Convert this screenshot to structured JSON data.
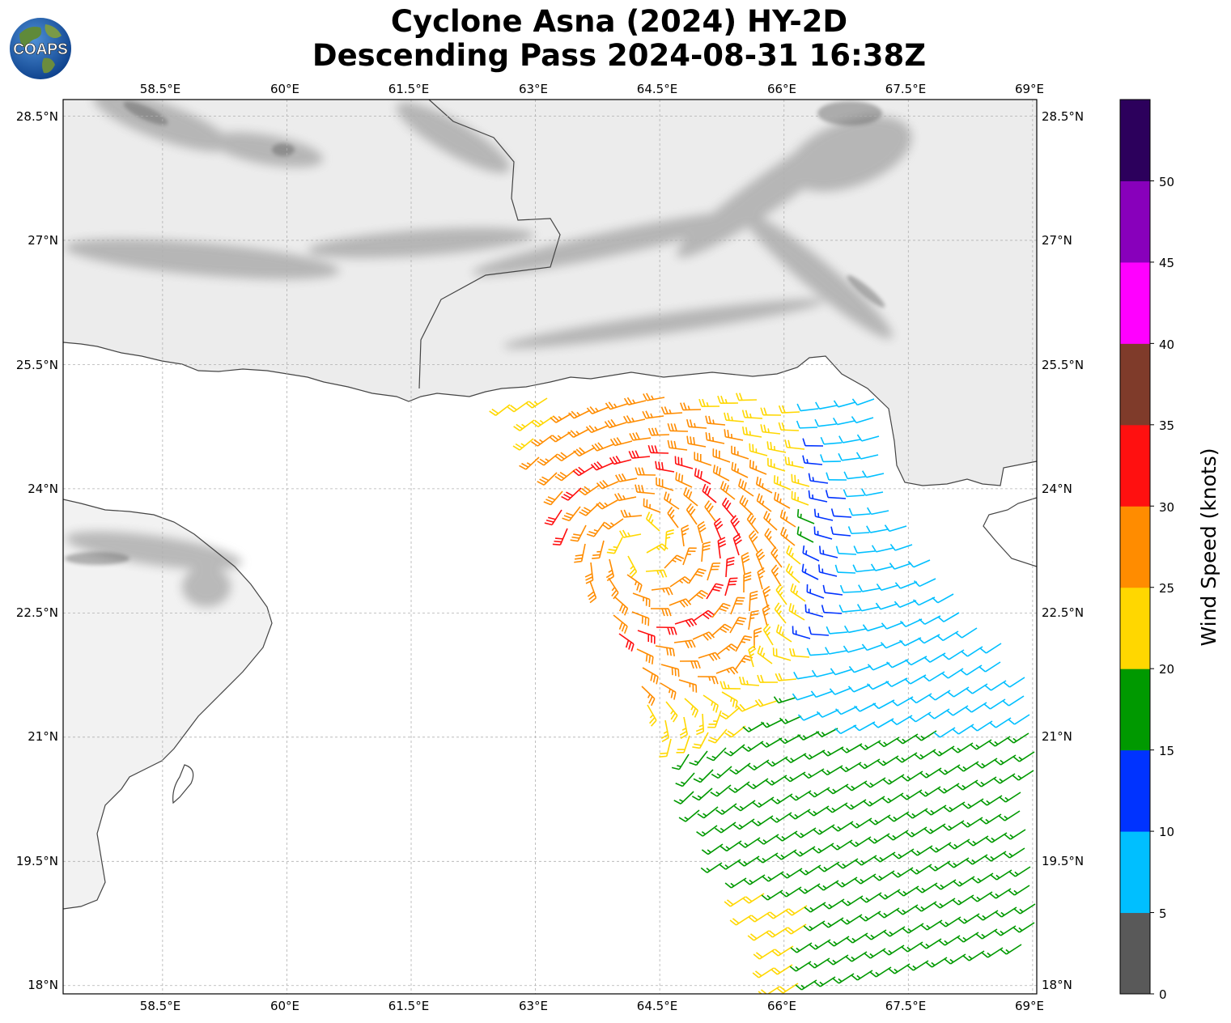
{
  "header": {
    "title_line1": "Cyclone Asna (2024) HY-2D",
    "title_line2": "Descending Pass 2024-08-31 16:38Z",
    "logo_text": "COAPS"
  },
  "map": {
    "lon_range": [
      57.3,
      69.05
    ],
    "lat_range": [
      17.9,
      28.7
    ],
    "lon_ticks": [
      "58.5°E",
      "60°E",
      "61.5°E",
      "63°E",
      "64.5°E",
      "66°E",
      "67.5°E",
      "69°E"
    ],
    "lat_ticks": [
      "28.5°N",
      "27°N",
      "25.5°N",
      "24°N",
      "22.5°N",
      "21°N",
      "19.5°N",
      "18°N"
    ],
    "gridlines": true,
    "background": "grayscale infrared satellite imagery over land"
  },
  "colorbar": {
    "label": "Wind Speed (knots)",
    "ticks": [
      "0",
      "5",
      "10",
      "15",
      "20",
      "25",
      "30",
      "35",
      "40",
      "45",
      "50"
    ],
    "colors": [
      "#595959",
      "#00bfff",
      "#0033ff",
      "#009900",
      "#ffd700",
      "#ff8c00",
      "#ff1010",
      "#7f3b2a",
      "#ff00ff",
      "#8800bb",
      "#2c005c"
    ]
  },
  "wind_field": {
    "type": "wind barbs",
    "units": "knots",
    "center_lon": 64.3,
    "center_lat": 23.3
  }
}
